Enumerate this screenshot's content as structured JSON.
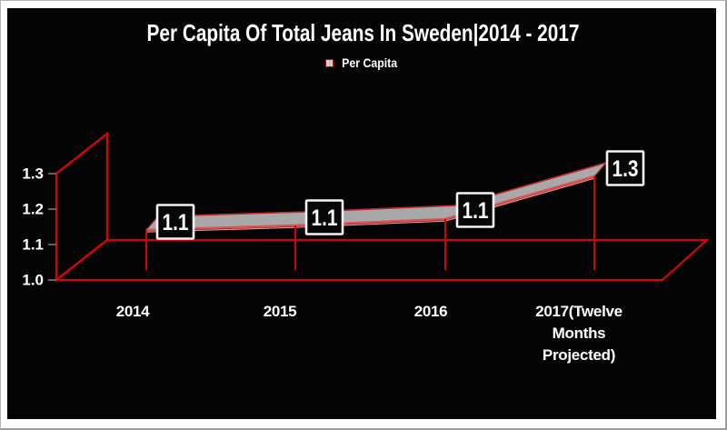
{
  "title": "Per Capita Of Total Jeans In Sweden|2014 - 2017",
  "legend": {
    "label": "Per Capita"
  },
  "chart_data": {
    "type": "area",
    "projection": "3d",
    "title": "Per Capita Of Total Jeans In Sweden|2014 - 2017",
    "categories": [
      "2014",
      "2015",
      "2016",
      "2017(Twelve Months Projected)"
    ],
    "series": [
      {
        "name": "Per Capita",
        "values": [
          1.1,
          1.1,
          1.1,
          1.3
        ]
      }
    ],
    "data_labels": [
      "1.1",
      "1.1",
      "1.1",
      "1.3"
    ],
    "yticks": [
      "1.0",
      "1.1",
      "1.2",
      "1.3"
    ],
    "ylim": [
      1.0,
      1.3
    ],
    "xlabel": "",
    "ylabel": "",
    "legend_position": "top",
    "grid": false,
    "colors": {
      "background": "#040404",
      "frame_line": "#d10505",
      "tick": "#616161",
      "text": "#ffffff",
      "ribbon_fill": "#b4b4b4",
      "ribbon_edge": "#bb2a2a",
      "ribbon_edge_bright": "#e05050",
      "ribbon_edge_highlight": "#f09090",
      "label_box_fill": "#070707",
      "label_box_border": "#f4f4f4"
    }
  }
}
